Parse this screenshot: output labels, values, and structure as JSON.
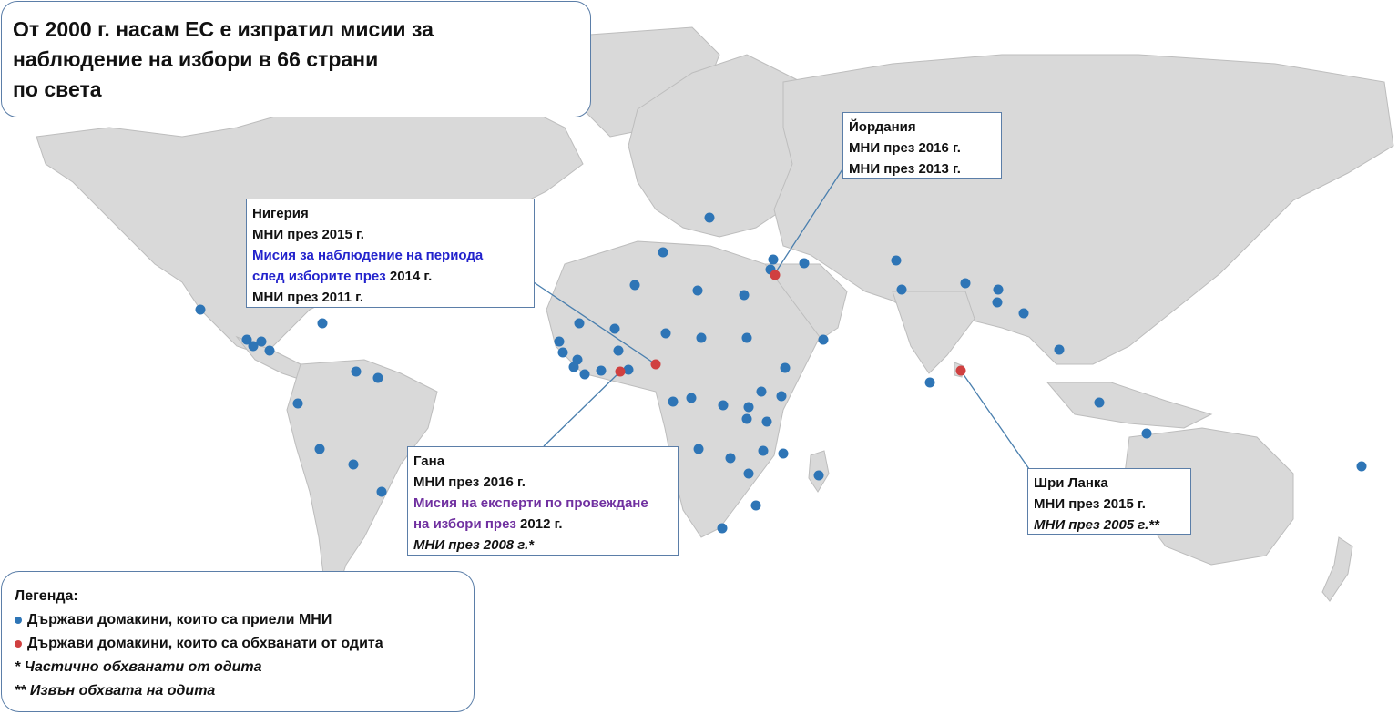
{
  "title": "От 2000 г. насам ЕС е изпратил мисии за\nнаблюдение на избори в 66 страни\nпо света",
  "colors": {
    "host_dot": "#2e75b6",
    "audit_dot": "#d04040",
    "land": "#d9d9d9",
    "callout_border": "#5b7ea8",
    "blue_text": "#2222cc",
    "purple_text": "#7030a0"
  },
  "callouts": {
    "jordan": {
      "country": "Йордания",
      "l1": "МНИ през 2016 г.",
      "l2": "МНИ през 2013 г."
    },
    "nigeria": {
      "country": "Нигерия",
      "l1": "МНИ през 2015 г.",
      "l2a": "Мисия за наблюдение на периода",
      "l2b_blue": "след изборите през",
      "l2b_year": " 2014 г.",
      "l3": "МНИ през 2011 г."
    },
    "ghana": {
      "country": "Гана",
      "l1": "МНИ през 2016 г.",
      "l2a": "Мисия на експерти по провеждане",
      "l2b_purple": "на избори през",
      "l2b_year": " 2012 г.",
      "l3": "МНИ през 2008 г.*"
    },
    "srilanka": {
      "country": "Шри Ланка",
      "l1": "МНИ през 2015 г.",
      "l2": "МНИ през 2005 г.**"
    }
  },
  "legend": {
    "heading": "Легенда:",
    "host": "Държави домакини, които са приели МНИ",
    "audit": "Държави домакини, които са обхванати от одита",
    "note1": "* Частично обхванати от одита",
    "note2": "** Извън обхвата на одита"
  },
  "markers": {
    "host_countries_count": 62,
    "audited_countries": [
      "Йордания",
      "Нигерия",
      "Гана",
      "Шри Ланка"
    ]
  }
}
